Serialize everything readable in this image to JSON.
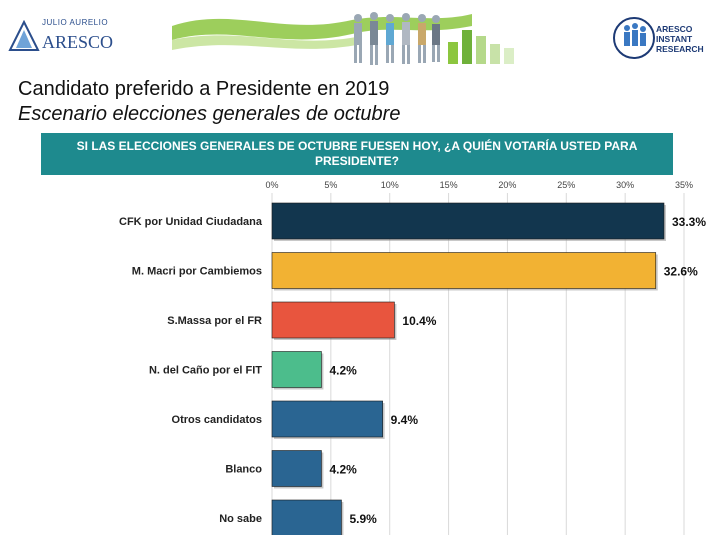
{
  "header": {
    "logo_left_small": "JULIO AURELIO",
    "logo_left_big": "ARESCO",
    "logo_right_lines": [
      "ARESCO",
      "INSTANT",
      "RESEARCH"
    ]
  },
  "title": "Candidato preferido a Presidente en 2019",
  "subtitle": "Escenario elecciones generales de octubre",
  "question": "SI LAS ELECCIONES GENERALES DE OCTUBRE  FUESEN HOY, ¿A QUIÉN VOTARÍA USTED PARA PRESIDENTE?",
  "chart_data": {
    "type": "bar",
    "orientation": "horizontal",
    "categories": [
      "CFK por Unidad Ciudadana",
      "M. Macri por Cambiemos",
      "S.Massa por el FR",
      "N. del Caño por el FIT",
      "Otros candidatos",
      "Blanco",
      "No sabe"
    ],
    "values": [
      33.3,
      32.6,
      10.4,
      4.2,
      9.4,
      4.2,
      5.9
    ],
    "value_labels": [
      "33.3%",
      "32.6%",
      "10.4%",
      "4.2%",
      "9.4%",
      "4.2%",
      "5.9%"
    ],
    "colors": [
      "#12364e",
      "#f2b233",
      "#e8553e",
      "#4cbd8c",
      "#2a6592",
      "#2a6592",
      "#2a6592"
    ],
    "xlim": [
      0,
      35
    ],
    "ticks": [
      0,
      5,
      10,
      15,
      20,
      25,
      30,
      35
    ],
    "tick_labels": [
      "0%",
      "5%",
      "10%",
      "15%",
      "20%",
      "25%",
      "30%",
      "35%"
    ],
    "grid": true,
    "title": "",
    "xlabel": "",
    "ylabel": ""
  }
}
